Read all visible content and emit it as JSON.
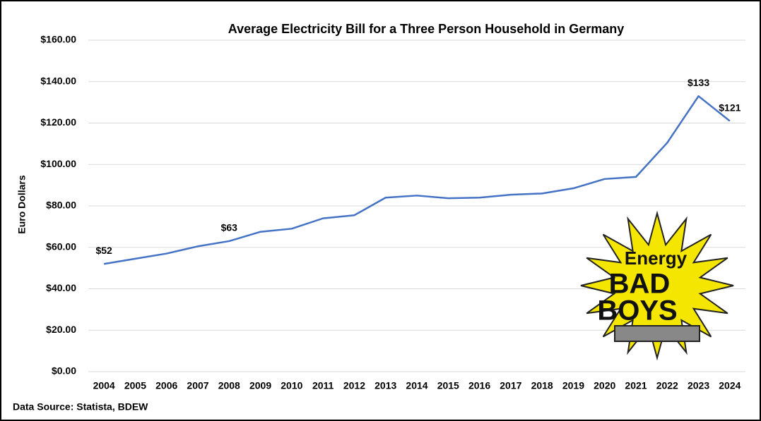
{
  "chart_data": {
    "type": "line",
    "title": "Average Electricity Bill for a Three Person Household in Germany",
    "y_label": "Euro Dollars",
    "source": "Data Source: Statista, BDEW",
    "logo": [
      "Energy",
      "BAD",
      "BOYS"
    ],
    "categories": [
      "2004",
      "2005",
      "2006",
      "2007",
      "2008",
      "2009",
      "2010",
      "2011",
      "2012",
      "2013",
      "2014",
      "2015",
      "2016",
      "2017",
      "2018",
      "2019",
      "2020",
      "2021",
      "2022",
      "2023",
      "2024"
    ],
    "series": [
      {
        "name": "Average Electricity Bill",
        "color": "#4472c4",
        "values": [
          52,
          54.5,
          57,
          60.5,
          63,
          67.5,
          69,
          74,
          75.5,
          84,
          85,
          83.7,
          84,
          85.4,
          86,
          88.5,
          93,
          94,
          110.5,
          133,
          121
        ],
        "value_labels": [
          "$52",
          null,
          null,
          null,
          "$63",
          null,
          null,
          null,
          null,
          null,
          null,
          null,
          null,
          null,
          null,
          null,
          null,
          null,
          null,
          "$133",
          "$121"
        ]
      }
    ],
    "ylim": [
      0,
      160
    ],
    "yticks": [
      {
        "value": 0,
        "label": "$0.00"
      },
      {
        "value": 20,
        "label": "$20.00"
      },
      {
        "value": 40,
        "label": "$40.00"
      },
      {
        "value": 60,
        "label": "$60.00"
      },
      {
        "value": 80,
        "label": "$80.00"
      },
      {
        "value": 100,
        "label": "$100.00"
      },
      {
        "value": 120,
        "label": "$120.00"
      },
      {
        "value": 140,
        "label": "$140.00"
      },
      {
        "value": 160,
        "label": "$160.00"
      }
    ],
    "grid": true
  }
}
